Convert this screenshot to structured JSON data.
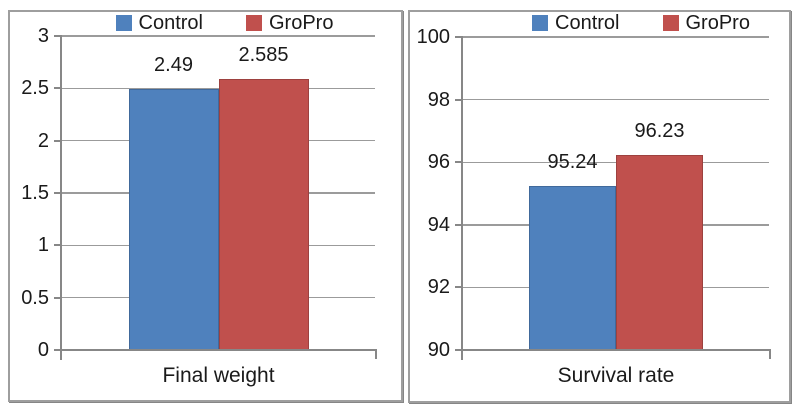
{
  "figure": {
    "colors": {
      "control_series": "#4F81BD",
      "gropro_series": "#C0504D",
      "gridline": "#9B9B9B",
      "axis": "#878787",
      "text": "#1A1A1A",
      "panel_border": "#9E9E9E",
      "background": "#FFFFFF"
    }
  },
  "chart_data": [
    {
      "type": "bar",
      "title": "",
      "category_label": "Final weight",
      "categories": [
        "Final weight"
      ],
      "xlabel": "",
      "ylabel": "",
      "ylim": [
        0,
        3
      ],
      "grid": true,
      "legend_position": "top",
      "series": [
        {
          "name": "Control",
          "value": 2.49,
          "label": "2.49",
          "color": "#4F81BD"
        },
        {
          "name": "GroPro",
          "value": 2.585,
          "label": "2.585",
          "color": "#C0504D"
        }
      ],
      "yticks": [
        {
          "value": 3,
          "label": "3"
        },
        {
          "value": 2.5,
          "label": "2.5"
        },
        {
          "value": 2,
          "label": "2"
        },
        {
          "value": 1.5,
          "label": "1.5"
        },
        {
          "value": 1,
          "label": "1"
        },
        {
          "value": 0.5,
          "label": "0.5"
        },
        {
          "value": 0,
          "label": "0"
        }
      ]
    },
    {
      "type": "bar",
      "title": "",
      "category_label": "Survival rate",
      "categories": [
        "Survival rate"
      ],
      "xlabel": "",
      "ylabel": "",
      "ylim": [
        90,
        100
      ],
      "grid": true,
      "legend_position": "top",
      "series": [
        {
          "name": "Control",
          "value": 95.24,
          "label": "95.24",
          "color": "#4F81BD"
        },
        {
          "name": "GroPro",
          "value": 96.23,
          "label": "96.23",
          "color": "#C0504D"
        }
      ],
      "yticks": [
        {
          "value": 100,
          "label": "100"
        },
        {
          "value": 98,
          "label": "98"
        },
        {
          "value": 96,
          "label": "96"
        },
        {
          "value": 94,
          "label": "94"
        },
        {
          "value": 92,
          "label": "92"
        },
        {
          "value": 90,
          "label": "90"
        }
      ]
    }
  ]
}
